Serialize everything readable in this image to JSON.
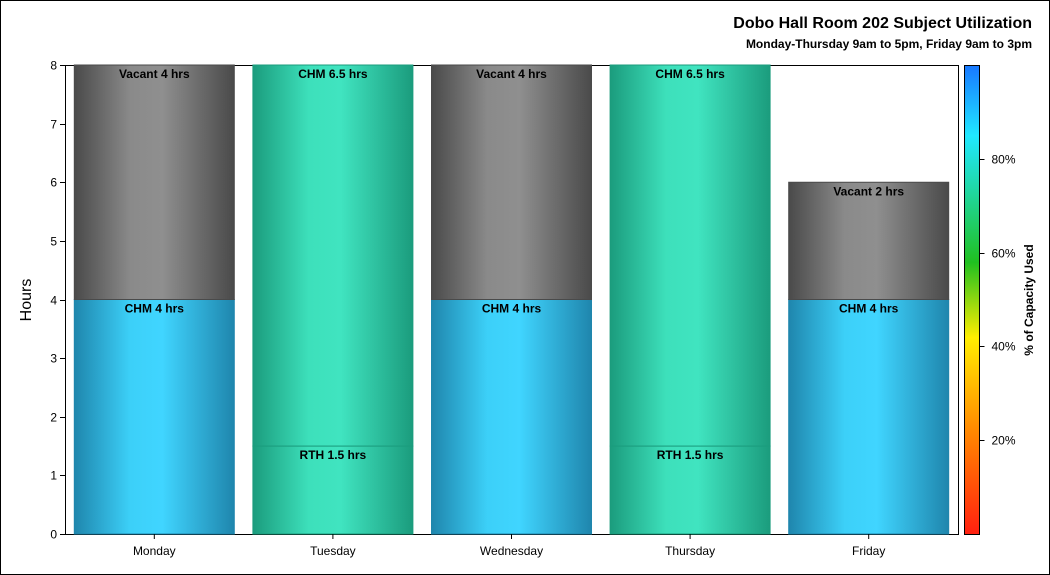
{
  "chart_data": {
    "type": "bar",
    "stacked": true,
    "title": "Dobo Hall Room 202 Subject Utilization",
    "subtitle": "Monday-Thursday 9am to 5pm, Friday 9am to 3pm",
    "xlabel": "",
    "ylabel": "Hours",
    "ylim": [
      0,
      8
    ],
    "yticks": [
      "0",
      "1",
      "2",
      "3",
      "4",
      "5",
      "6",
      "7",
      "8"
    ],
    "categories": [
      "Monday",
      "Tuesday",
      "Wednesday",
      "Thursday",
      "Friday"
    ],
    "segments": [
      [
        {
          "label": "CHM 4 hrs",
          "hours": 4,
          "capacity_pct": 90
        },
        {
          "label": "Vacant 4 hrs",
          "hours": 4,
          "capacity_pct": null
        }
      ],
      [
        {
          "label": "RTH 1.5 hrs",
          "hours": 1.5,
          "capacity_pct": 77
        },
        {
          "label": "CHM 6.5 hrs",
          "hours": 6.5,
          "capacity_pct": 77
        }
      ],
      [
        {
          "label": "CHM 4 hrs",
          "hours": 4,
          "capacity_pct": 90
        },
        {
          "label": "Vacant 4 hrs",
          "hours": 4,
          "capacity_pct": null
        }
      ],
      [
        {
          "label": "RTH 1.5 hrs",
          "hours": 1.5,
          "capacity_pct": 77
        },
        {
          "label": "CHM 6.5 hrs",
          "hours": 6.5,
          "capacity_pct": 77
        }
      ],
      [
        {
          "label": "CHM 4 hrs",
          "hours": 4,
          "capacity_pct": 90
        },
        {
          "label": "Vacant 2 hrs",
          "hours": 2,
          "capacity_pct": null
        }
      ]
    ],
    "colorbar": {
      "title": "% of Capacity Used",
      "ticks": [
        "20%",
        "40%",
        "60%",
        "80%"
      ],
      "tick_values": [
        20,
        40,
        60,
        80
      ],
      "range": [
        0,
        100
      ],
      "stops": [
        "#ff2010",
        "#ff8800",
        "#ffee00",
        "#20c020",
        "#20d8a8",
        "#20e8ff",
        "#1878ff"
      ]
    },
    "colors": {
      "blue_edge": "#1f86ad",
      "blue_mid": "#40d5ff",
      "green_edge": "#1b9c7d",
      "green_mid": "#40e4c0",
      "gray_edge": "#4a4a4a",
      "gray_mid": "#8f8f8f"
    },
    "grid": false,
    "legend": "colorbar-right"
  }
}
